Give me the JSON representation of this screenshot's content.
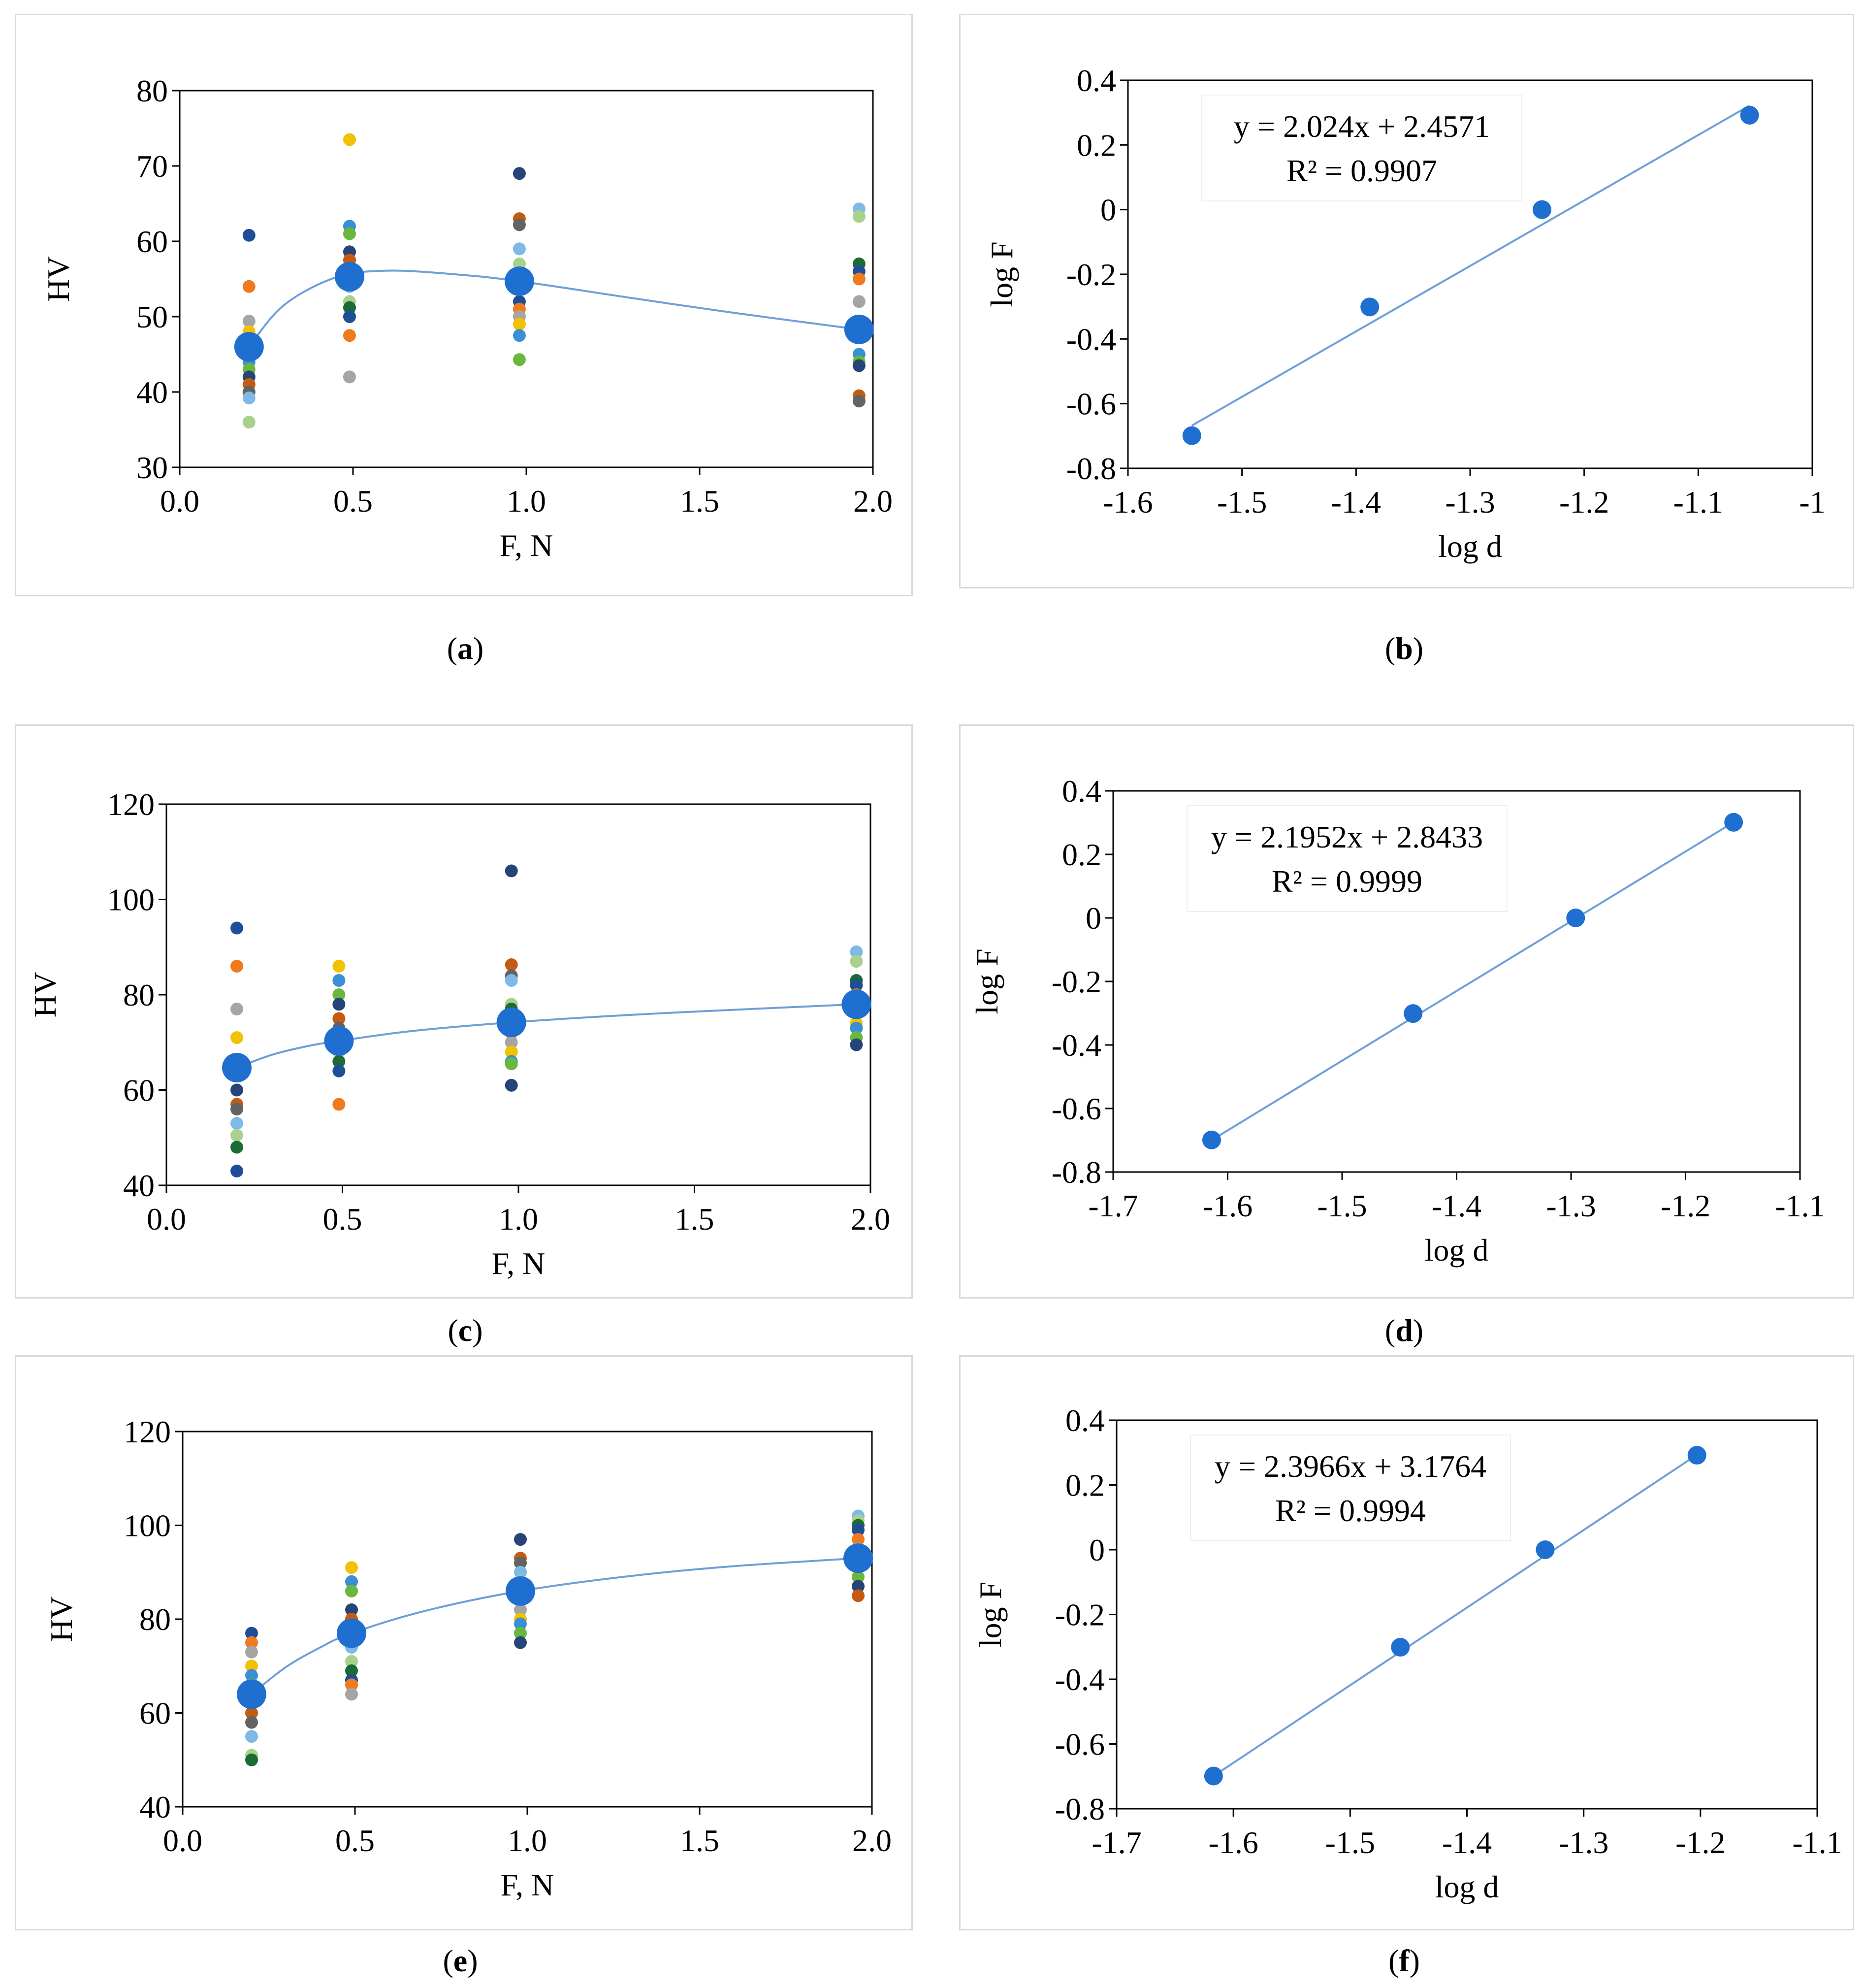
{
  "colors": {
    "main": "#1f6fd0",
    "line": "#6f9fd8",
    "scatter_palette": [
      "#1f4e99",
      "#f07a1e",
      "#a5a5a5",
      "#f2c100",
      "#3a8fd6",
      "#69b83d",
      "#264478",
      "#c55a11",
      "#636363",
      "#7eb9e8",
      "#a9d18e",
      "#1d6b34"
    ]
  },
  "panels": [
    {
      "id": "a",
      "caption": "a",
      "kind": "hv",
      "chart_data": {
        "type": "scatter",
        "xlabel": "F, N",
        "ylabel": "HV",
        "xlim": [
          0,
          2
        ],
        "ylim": [
          30,
          80
        ],
        "xticks": [
          0,
          0.5,
          1,
          1.5,
          2
        ],
        "yticks": [
          30,
          40,
          50,
          60,
          70,
          80
        ],
        "xtick_labels": [
          "0.0",
          "0.5",
          "1.0",
          "1.5",
          "2.0"
        ],
        "ytick_labels": [
          "30",
          "40",
          "50",
          "60",
          "70",
          "80"
        ],
        "mean_series": {
          "x": [
            0.2,
            0.49,
            0.98,
            1.96
          ],
          "y": [
            46,
            55.3,
            54.7,
            48.3
          ]
        },
        "trend": {
          "x": [
            0.2,
            0.3,
            0.45,
            0.6,
            0.8,
            0.98,
            1.3,
            1.6,
            1.96
          ],
          "y": [
            46,
            51.5,
            55.2,
            56.1,
            55.6,
            54.7,
            52.5,
            50.5,
            48.3
          ]
        },
        "scatter": [
          {
            "x": 0.2,
            "values": [
              60.8,
              54,
              49.4,
              48,
              44,
              43,
              42,
              41,
              40,
              39.2,
              36
            ]
          },
          {
            "x": 0.49,
            "values": [
              73.5,
              62,
              61,
              58.6,
              57.5,
              56,
              54,
              52,
              51.2,
              50,
              47.5,
              42
            ]
          },
          {
            "x": 0.98,
            "values": [
              69,
              63,
              62.2,
              59,
              57,
              55,
              52,
              51,
              50,
              49,
              47.5,
              44.3
            ]
          },
          {
            "x": 1.96,
            "values": [
              64.3,
              63.3,
              57,
              56,
              55,
              52,
              48,
              45,
              44,
              43.5,
              39.5,
              38.8
            ]
          }
        ]
      }
    },
    {
      "id": "b",
      "caption": "b",
      "kind": "log",
      "chart_data": {
        "type": "scatter",
        "xlabel": "log d",
        "ylabel": "log F",
        "xlim": [
          -1.6,
          -1
        ],
        "ylim": [
          -0.8,
          0.4
        ],
        "xticks": [
          -1.6,
          -1.5,
          -1.4,
          -1.3,
          -1.2,
          -1.1,
          -1
        ],
        "yticks": [
          -0.8,
          -0.6,
          -0.4,
          -0.2,
          0,
          0.2,
          0.4
        ],
        "xtick_labels": [
          "-1.6",
          "-1.5",
          "-1.4",
          "-1.3",
          "-1.2",
          "-1.1",
          "-1"
        ],
        "ytick_labels": [
          "-0.8",
          "-0.6",
          "-0.4",
          "-0.2",
          "0",
          "0.2",
          "0.4"
        ],
        "points": {
          "x": [
            -1.544,
            -1.388,
            -1.237,
            -1.055
          ],
          "y": [
            -0.699,
            -0.301,
            0,
            0.292
          ]
        },
        "fit": {
          "slope": 2.024,
          "intercept": 2.4571,
          "x_range": [
            -1.544,
            -1.055
          ]
        },
        "equation": "y = 2.024x + 2.4571",
        "r2": "R² = 0.9907"
      }
    },
    {
      "id": "c",
      "caption": "c",
      "kind": "hv",
      "chart_data": {
        "type": "scatter",
        "xlabel": "F, N",
        "ylabel": "HV",
        "xlim": [
          0,
          2
        ],
        "ylim": [
          40,
          120
        ],
        "xticks": [
          0,
          0.5,
          1,
          1.5,
          2
        ],
        "yticks": [
          40,
          60,
          80,
          100,
          120
        ],
        "xtick_labels": [
          "0.0",
          "0.5",
          "1.0",
          "1.5",
          "2.0"
        ],
        "ytick_labels": [
          "40",
          "60",
          "80",
          "100",
          "120"
        ],
        "mean_series": {
          "x": [
            0.2,
            0.49,
            0.98,
            1.96
          ],
          "y": [
            64.7,
            70.3,
            74.2,
            78
          ]
        },
        "trend": {
          "x": [
            0.2,
            0.3,
            0.4,
            0.49,
            0.7,
            0.98,
            1.3,
            1.6,
            1.96
          ],
          "y": [
            64.7,
            67.4,
            69.2,
            70.3,
            72.4,
            74.2,
            75.7,
            76.8,
            78
          ]
        },
        "scatter": [
          {
            "x": 0.2,
            "values": [
              94,
              86,
              77,
              71,
              66,
              63,
              60,
              57,
              56,
              53,
              50.5,
              48,
              43
            ]
          },
          {
            "x": 0.49,
            "values": [
              86,
              83,
              80,
              78,
              75,
              73,
              70,
              68,
              66,
              64,
              57
            ]
          },
          {
            "x": 0.98,
            "values": [
              106,
              86.3,
              84,
              83,
              78,
              77,
              76,
              72,
              70,
              68,
              66,
              65.5,
              61
            ]
          },
          {
            "x": 1.96,
            "values": [
              89,
              87,
              83,
              82,
              80,
              76,
              74,
              73,
              71,
              69.5
            ]
          }
        ]
      }
    },
    {
      "id": "d",
      "caption": "d",
      "kind": "log",
      "chart_data": {
        "type": "scatter",
        "xlabel": "log d",
        "ylabel": "log F",
        "xlim": [
          -1.7,
          -1.1
        ],
        "ylim": [
          -0.8,
          0.4
        ],
        "xticks": [
          -1.7,
          -1.6,
          -1.5,
          -1.4,
          -1.3,
          -1.2,
          -1.1
        ],
        "yticks": [
          -0.8,
          -0.6,
          -0.4,
          -0.2,
          0,
          0.2,
          0.4
        ],
        "xtick_labels": [
          "-1.7",
          "-1.6",
          "-1.5",
          "-1.4",
          "-1.3",
          "-1.2",
          "-1.1"
        ],
        "ytick_labels": [
          "-0.8",
          "-0.6",
          "-0.4",
          "-0.2",
          "0",
          "0.2",
          "0.4"
        ],
        "points": {
          "x": [
            -1.614,
            -1.438,
            -1.296,
            -1.158
          ],
          "y": [
            -0.699,
            -0.301,
            0,
            0.301
          ]
        },
        "fit": {
          "slope": 2.1952,
          "intercept": 2.8433,
          "x_range": [
            -1.614,
            -1.158
          ]
        },
        "equation": "y = 2.1952x + 2.8433",
        "r2": "R² = 0.9999"
      }
    },
    {
      "id": "e",
      "caption": "e",
      "kind": "hv",
      "chart_data": {
        "type": "scatter",
        "xlabel": "F, N",
        "ylabel": "HV",
        "xlim": [
          0,
          2
        ],
        "ylim": [
          40,
          120
        ],
        "xticks": [
          0,
          0.5,
          1,
          1.5,
          2
        ],
        "yticks": [
          40,
          60,
          80,
          100,
          120
        ],
        "xtick_labels": [
          "0.0",
          "0.5",
          "1.0",
          "1.5",
          "2.0"
        ],
        "ytick_labels": [
          "40",
          "60",
          "80",
          "100",
          "120"
        ],
        "mean_series": {
          "x": [
            0.2,
            0.49,
            0.98,
            1.96
          ],
          "y": [
            64,
            77,
            86,
            93
          ]
        },
        "trend": {
          "x": [
            0.2,
            0.3,
            0.4,
            0.49,
            0.7,
            0.98,
            1.3,
            1.6,
            1.96
          ],
          "y": [
            64,
            69.8,
            74,
            77,
            81.7,
            86,
            89.2,
            91.3,
            93
          ]
        },
        "scatter": [
          {
            "x": 0.2,
            "values": [
              77,
              75,
              73,
              70,
              68,
              66,
              62,
              60,
              58,
              55,
              51,
              50
            ]
          },
          {
            "x": 0.49,
            "values": [
              91,
              88,
              86,
              82,
              80,
              78,
              74,
              71,
              69,
              67,
              66,
              64
            ]
          },
          {
            "x": 0.98,
            "values": [
              97,
              93,
              92,
              90,
              88,
              87,
              85,
              84,
              82,
              80,
              79,
              77,
              75
            ]
          },
          {
            "x": 1.96,
            "values": [
              102,
              101,
              100,
              99,
              97,
              95,
              93,
              91,
              89,
              87,
              85
            ]
          }
        ]
      }
    },
    {
      "id": "f",
      "caption": "f",
      "kind": "log",
      "chart_data": {
        "type": "scatter",
        "xlabel": "log d",
        "ylabel": "log F",
        "xlim": [
          -1.7,
          -1.1
        ],
        "ylim": [
          -0.8,
          0.4
        ],
        "xticks": [
          -1.7,
          -1.6,
          -1.5,
          -1.4,
          -1.3,
          -1.2,
          -1.1
        ],
        "yticks": [
          -0.8,
          -0.6,
          -0.4,
          -0.2,
          0,
          0.2,
          0.4
        ],
        "xtick_labels": [
          "-1.7",
          "-1.6",
          "-1.5",
          "-1.4",
          "-1.3",
          "-1.2",
          "-1.1"
        ],
        "ytick_labels": [
          "-0.8",
          "-0.6",
          "-0.4",
          "-0.2",
          "0",
          "0.2",
          "0.4"
        ],
        "points": {
          "x": [
            -1.617,
            -1.457,
            -1.333,
            -1.203
          ],
          "y": [
            -0.699,
            -0.301,
            0,
            0.292
          ]
        },
        "fit": {
          "slope": 2.3966,
          "intercept": 3.1764,
          "x_range": [
            -1.617,
            -1.203
          ]
        },
        "equation": "y = 2.3966x + 3.1764",
        "r2": "R² = 0.9994"
      }
    }
  ]
}
